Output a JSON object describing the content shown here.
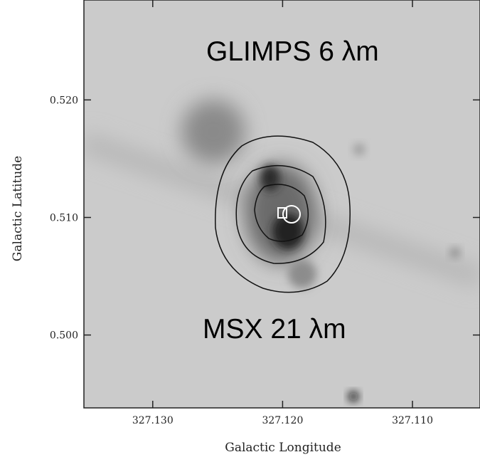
{
  "chart_data": {
    "type": "image",
    "annotations": [
      "GLIMPS 6 λm",
      "MSX 21 λm"
    ],
    "x_label": "Galactic Longitude",
    "y_label": "Galactic Latitude",
    "xlim": [
      327.1353,
      327.1048
    ],
    "ylim": [
      0.4938,
      0.5285
    ],
    "xticks": [
      {
        "value": 327.13,
        "label": "327.130"
      },
      {
        "value": 327.12,
        "label": "327.120"
      },
      {
        "value": 327.11,
        "label": "327.110"
      }
    ],
    "yticks": [
      {
        "value": 0.52,
        "label": "0.520"
      },
      {
        "value": 0.51,
        "label": "0.510"
      },
      {
        "value": 0.5,
        "label": "0.500"
      }
    ]
  }
}
